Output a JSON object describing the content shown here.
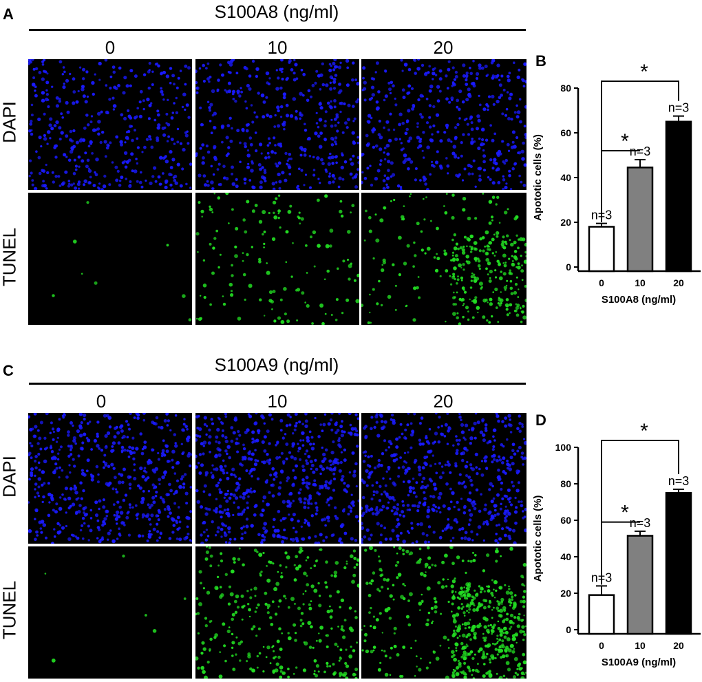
{
  "figure": {
    "panel_a": {
      "letter": "A",
      "title": "S100A8 (ng/ml)",
      "columns": [
        "0",
        "10",
        "20"
      ],
      "rows": [
        "DAPI",
        "TUNEL"
      ]
    },
    "panel_c": {
      "letter": "C",
      "title": "S100A9 (ng/ml)",
      "columns": [
        "0",
        "10",
        "20"
      ],
      "rows": [
        "DAPI",
        "TUNEL"
      ]
    },
    "colors": {
      "dapi": "#1a1aff",
      "tunel": "#22dd22",
      "background": "#000000",
      "bar_0": "#ffffff",
      "bar_10": "#808080",
      "bar_20": "#000000"
    }
  },
  "chart_data": [
    {
      "panel": "B",
      "type": "bar",
      "categories": [
        "0",
        "10",
        "20"
      ],
      "values": [
        18,
        44.5,
        65
      ],
      "errors": [
        1.5,
        3.5,
        2.5
      ],
      "n_labels": [
        "n=3",
        "n=3",
        "n=3"
      ],
      "colors": [
        "#ffffff",
        "#808080",
        "#000000"
      ],
      "xlabel": "S100A8 (ng/ml)",
      "ylabel": "Apototic cells (%)",
      "ylim": [
        0,
        80
      ],
      "yticks": [
        0,
        20,
        40,
        60,
        80
      ],
      "significance": [
        {
          "from": 0,
          "to": 1,
          "label": "*"
        },
        {
          "from": 0,
          "to": 2,
          "label": "*"
        }
      ]
    },
    {
      "panel": "D",
      "type": "bar",
      "categories": [
        "0",
        "10",
        "20"
      ],
      "values": [
        19,
        51.5,
        75
      ],
      "errors": [
        5,
        2.5,
        2
      ],
      "n_labels": [
        "n=3",
        "n=3",
        "n=3"
      ],
      "colors": [
        "#ffffff",
        "#808080",
        "#000000"
      ],
      "xlabel": "S100A9 (ng/ml)",
      "ylabel": "Apototic cells (%)",
      "ylim": [
        0,
        100
      ],
      "yticks": [
        0,
        20,
        40,
        60,
        80,
        100
      ],
      "significance": [
        {
          "from": 0,
          "to": 1,
          "label": "*"
        },
        {
          "from": 0,
          "to": 2,
          "label": "*"
        }
      ]
    }
  ]
}
